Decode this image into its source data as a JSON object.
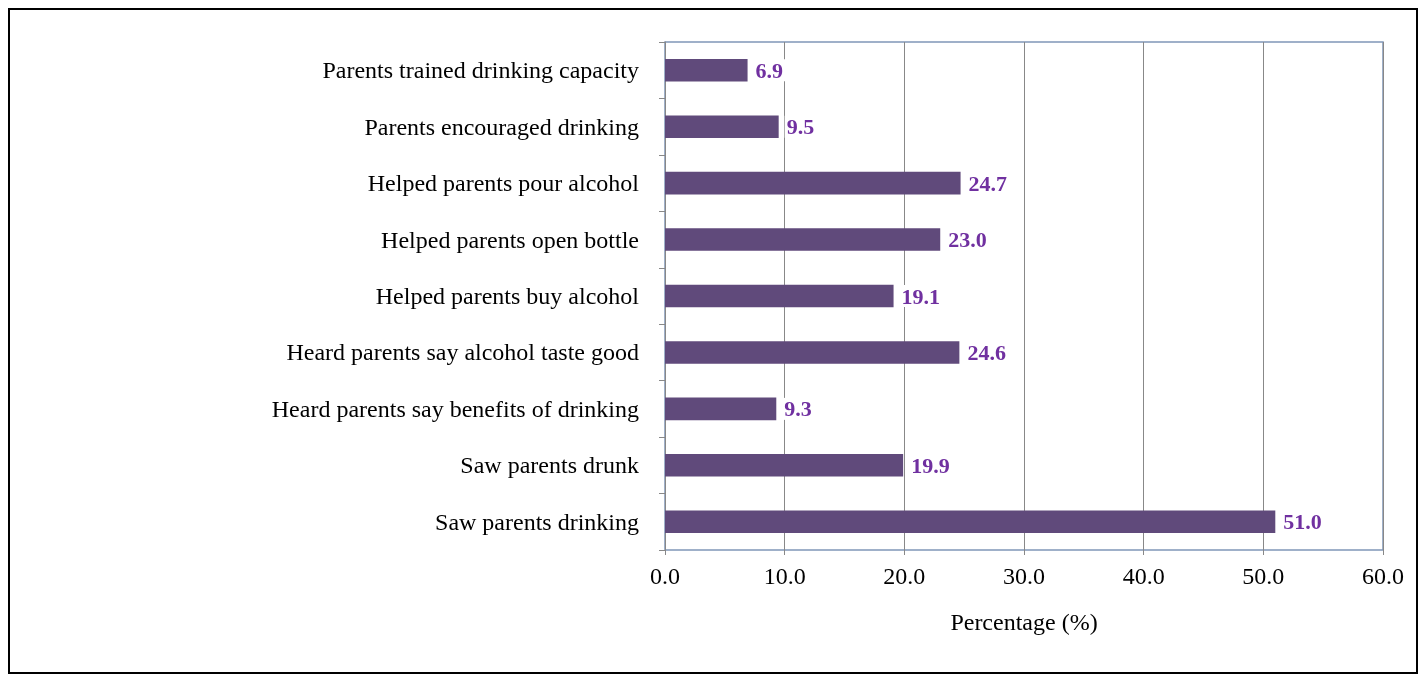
{
  "chart_data": {
    "type": "bar",
    "orientation": "horizontal",
    "xlabel": "Percentage (%)",
    "categories": [
      "Parents trained drinking capacity",
      "Parents encouraged drinking",
      "Helped parents pour alcohol",
      "Helped parents open bottle",
      "Helped parents buy alcohol",
      "Heard parents say alcohol taste good",
      "Heard parents say benefits of drinking",
      "Saw parents drunk",
      "Saw parents drinking"
    ],
    "values": [
      6.9,
      9.5,
      24.7,
      23.0,
      19.1,
      24.6,
      9.3,
      19.9,
      51.0
    ],
    "value_labels": [
      "6.9",
      "9.5",
      "24.7",
      "23.0",
      "19.1",
      "24.6",
      "9.3",
      "19.9",
      "51.0"
    ],
    "color": "#604a7b",
    "xlim": [
      0,
      60
    ],
    "xticks": [
      {
        "value": 0,
        "label": "0.0"
      },
      {
        "value": 10,
        "label": "10.0"
      },
      {
        "value": 20,
        "label": "20.0"
      },
      {
        "value": 30,
        "label": "30.0"
      },
      {
        "value": 40,
        "label": "40.0"
      },
      {
        "value": 50,
        "label": "50.0"
      },
      {
        "value": 60,
        "label": "60.0"
      }
    ],
    "grid": "x"
  }
}
